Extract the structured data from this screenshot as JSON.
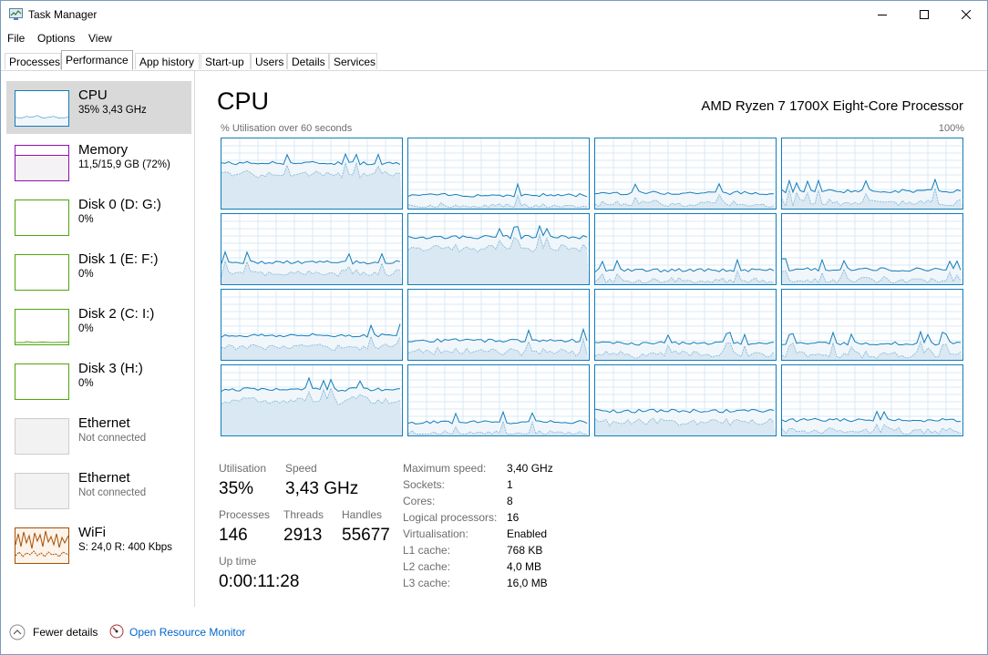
{
  "window": {
    "title": "Task Manager"
  },
  "menu": [
    "File",
    "Options",
    "View"
  ],
  "tabs": [
    "Processes",
    "Performance",
    "App history",
    "Start-up",
    "Users",
    "Details",
    "Services"
  ],
  "active_tab": "Performance",
  "sidebar": {
    "items": [
      {
        "title": "CPU",
        "sub": "35% 3,43 GHz",
        "color": "#117dbb",
        "icon": "cpu-graph"
      },
      {
        "title": "Memory",
        "sub": "11,5/15,9 GB (72%)",
        "color": "#8b12ae",
        "icon": "memory-graph"
      },
      {
        "title": "Disk 0 (D: G:)",
        "sub": "0%",
        "color": "#4da60c",
        "icon": "disk-graph"
      },
      {
        "title": "Disk 1 (E: F:)",
        "sub": "0%",
        "color": "#4da60c",
        "icon": "disk-graph"
      },
      {
        "title": "Disk 2 (C: I:)",
        "sub": "0%",
        "color": "#4da60c",
        "icon": "disk-graph"
      },
      {
        "title": "Disk 3 (H:)",
        "sub": "0%",
        "color": "#4da60c",
        "icon": "disk-graph"
      },
      {
        "title": "Ethernet",
        "sub": "Not connected",
        "color": "#cccccc",
        "icon": "ethernet-graph"
      },
      {
        "title": "Ethernet",
        "sub": "Not connected",
        "color": "#cccccc",
        "icon": "ethernet-graph"
      },
      {
        "title": "WiFi",
        "sub": "S: 24,0  R: 400 Kbps",
        "color": "#a74f01",
        "icon": "wifi-graph"
      }
    ]
  },
  "main": {
    "title": "CPU",
    "processor": "AMD Ryzen 7 1700X Eight-Core Processor",
    "axis_left": "% Utilisation over 60 seconds",
    "axis_right": "100%",
    "accent": "#117dbb",
    "graph_count": 16
  },
  "stats": {
    "utilisation_label": "Utilisation",
    "utilisation": "35%",
    "speed_label": "Speed",
    "speed": "3,43 GHz",
    "processes_label": "Processes",
    "processes": "146",
    "threads_label": "Threads",
    "threads": "2913",
    "handles_label": "Handles",
    "handles": "55677",
    "uptime_label": "Up time",
    "uptime": "0:00:11:28"
  },
  "specs": [
    {
      "k": "Maximum speed:",
      "v": "3,40 GHz"
    },
    {
      "k": "Sockets:",
      "v": "1"
    },
    {
      "k": "Cores:",
      "v": "8"
    },
    {
      "k": "Logical processors:",
      "v": "16"
    },
    {
      "k": "Virtualisation:",
      "v": "Enabled"
    },
    {
      "k": "L1 cache:",
      "v": "768 KB"
    },
    {
      "k": "L2 cache:",
      "v": "4,0 MB"
    },
    {
      "k": "L3 cache:",
      "v": "16,0 MB"
    }
  ],
  "footer": {
    "fewer_details": "Fewer details",
    "resource_monitor": "Open Resource Monitor"
  }
}
